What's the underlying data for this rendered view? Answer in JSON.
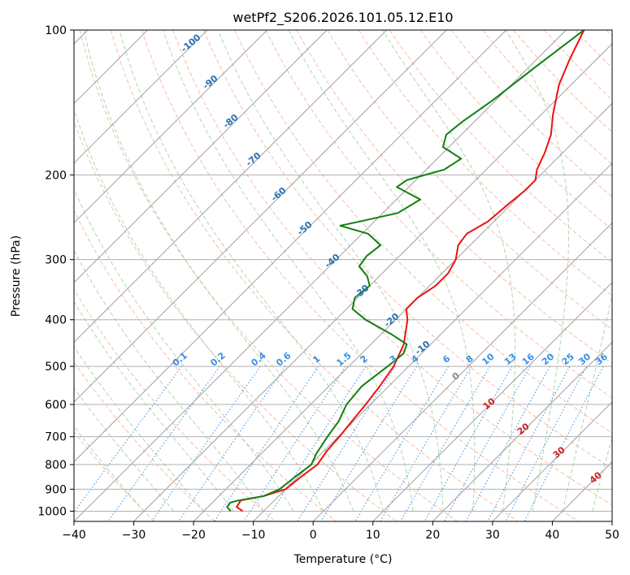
{
  "chart_data": {
    "type": "line",
    "title": "wetPf2_S206.2026.101.05.12.E10",
    "xlabel": "Temperature (°C)",
    "ylabel": "Pressure (hPa)",
    "xlim": [
      -40,
      50
    ],
    "ylim": [
      1050,
      100
    ],
    "y_scale": "log",
    "x_ticks": [
      "−40",
      "−30",
      "−20",
      "−10",
      "0",
      "10",
      "20",
      "30",
      "40",
      "50"
    ],
    "y_ticks": [
      {
        "p": 100,
        "label": "100"
      },
      {
        "p": 200,
        "label": "200"
      },
      {
        "p": 300,
        "label": "300"
      },
      {
        "p": 400,
        "label": "400"
      },
      {
        "p": 500,
        "label": "500"
      },
      {
        "p": 600,
        "label": "600"
      },
      {
        "p": 700,
        "label": "700"
      },
      {
        "p": 800,
        "label": "800"
      },
      {
        "p": 900,
        "label": "900"
      },
      {
        "p": 1000,
        "label": "1000"
      }
    ],
    "skew_note": "skewed temperature lines",
    "colors": {
      "temperature": "#ee1111",
      "dewpoint": "#108010",
      "isotherm": "#a0a0a0",
      "dry_adiabat": "#f4a58c",
      "moist_adiabat": "#8cc48c",
      "mixing_ratio": "#3a8ee6",
      "adiabat_label": "#2a6fb0",
      "moist_label_red": "#d22020",
      "moist_label_grey": "#888888",
      "grid": "#b0b0b0"
    },
    "series": [
      {
        "key": "temperature",
        "points": [
          {
            "p": 1000,
            "t": -13.5
          },
          {
            "p": 980,
            "t": -15.2
          },
          {
            "p": 950,
            "t": -15.6
          },
          {
            "p": 930,
            "t": -12.5
          },
          {
            "p": 900,
            "t": -10.0
          },
          {
            "p": 850,
            "t": -9.5
          },
          {
            "p": 800,
            "t": -8.8
          },
          {
            "p": 750,
            "t": -9.5
          },
          {
            "p": 700,
            "t": -9.8
          },
          {
            "p": 650,
            "t": -10.3
          },
          {
            "p": 600,
            "t": -10.8
          },
          {
            "p": 550,
            "t": -11.5
          },
          {
            "p": 500,
            "t": -12.5
          },
          {
            "p": 450,
            "t": -14.5
          },
          {
            "p": 400,
            "t": -18.0
          },
          {
            "p": 380,
            "t": -20.0
          },
          {
            "p": 360,
            "t": -20.0
          },
          {
            "p": 340,
            "t": -19.0
          },
          {
            "p": 320,
            "t": -19.0
          },
          {
            "p": 300,
            "t": -20.0
          },
          {
            "p": 280,
            "t": -22.0
          },
          {
            "p": 265,
            "t": -22.5
          },
          {
            "p": 250,
            "t": -21.0
          },
          {
            "p": 230,
            "t": -20.5
          },
          {
            "p": 215,
            "t": -20.0
          },
          {
            "p": 205,
            "t": -20.0
          },
          {
            "p": 195,
            "t": -21.5
          },
          {
            "p": 180,
            "t": -23.0
          },
          {
            "p": 165,
            "t": -25.0
          },
          {
            "p": 150,
            "t": -28.0
          },
          {
            "p": 130,
            "t": -32.0
          },
          {
            "p": 115,
            "t": -34.5
          },
          {
            "p": 100,
            "t": -37.0
          }
        ]
      },
      {
        "key": "dewpoint",
        "points": [
          {
            "p": 1000,
            "t": -15.5
          },
          {
            "p": 980,
            "t": -16.8
          },
          {
            "p": 960,
            "t": -17.0
          },
          {
            "p": 950,
            "t": -16.0
          },
          {
            "p": 930,
            "t": -12.5
          },
          {
            "p": 900,
            "t": -11.0
          },
          {
            "p": 850,
            "t": -10.5
          },
          {
            "p": 800,
            "t": -9.8
          },
          {
            "p": 760,
            "t": -10.8
          },
          {
            "p": 700,
            "t": -11.8
          },
          {
            "p": 650,
            "t": -12.5
          },
          {
            "p": 600,
            "t": -14.0
          },
          {
            "p": 550,
            "t": -14.5
          },
          {
            "p": 500,
            "t": -13.5
          },
          {
            "p": 470,
            "t": -13.0
          },
          {
            "p": 450,
            "t": -14.0
          },
          {
            "p": 430,
            "t": -18.0
          },
          {
            "p": 400,
            "t": -25.0
          },
          {
            "p": 380,
            "t": -29.0
          },
          {
            "p": 360,
            "t": -30.5
          },
          {
            "p": 340,
            "t": -30.0
          },
          {
            "p": 325,
            "t": -32.0
          },
          {
            "p": 310,
            "t": -35.0
          },
          {
            "p": 295,
            "t": -35.5
          },
          {
            "p": 280,
            "t": -35.0
          },
          {
            "p": 265,
            "t": -39.0
          },
          {
            "p": 255,
            "t": -45.0
          },
          {
            "p": 250,
            "t": -42.5
          },
          {
            "p": 240,
            "t": -37.5
          },
          {
            "p": 225,
            "t": -36.0
          },
          {
            "p": 212,
            "t": -42.0
          },
          {
            "p": 205,
            "t": -41.5
          },
          {
            "p": 195,
            "t": -37.0
          },
          {
            "p": 185,
            "t": -36.0
          },
          {
            "p": 175,
            "t": -41.0
          },
          {
            "p": 165,
            "t": -42.5
          },
          {
            "p": 155,
            "t": -42.0
          },
          {
            "p": 140,
            "t": -40.5
          },
          {
            "p": 120,
            "t": -39.0
          },
          {
            "p": 100,
            "t": -37.0
          }
        ]
      }
    ],
    "dry_adiabat_labels": [
      "-100",
      "-90",
      "-80",
      "-70",
      "-60",
      "-50",
      "-40",
      "-30",
      "-20",
      "-10"
    ],
    "mixing_ratio_labels": [
      "0.1",
      "0.2",
      "0.4",
      "0.6",
      "1",
      "1.5",
      "2",
      "3",
      "4",
      "6",
      "8",
      "10",
      "13",
      "16",
      "20",
      "25",
      "30",
      "36"
    ],
    "moist_adiabat_labels": [
      "0",
      "10",
      "20",
      "30",
      "40"
    ]
  }
}
